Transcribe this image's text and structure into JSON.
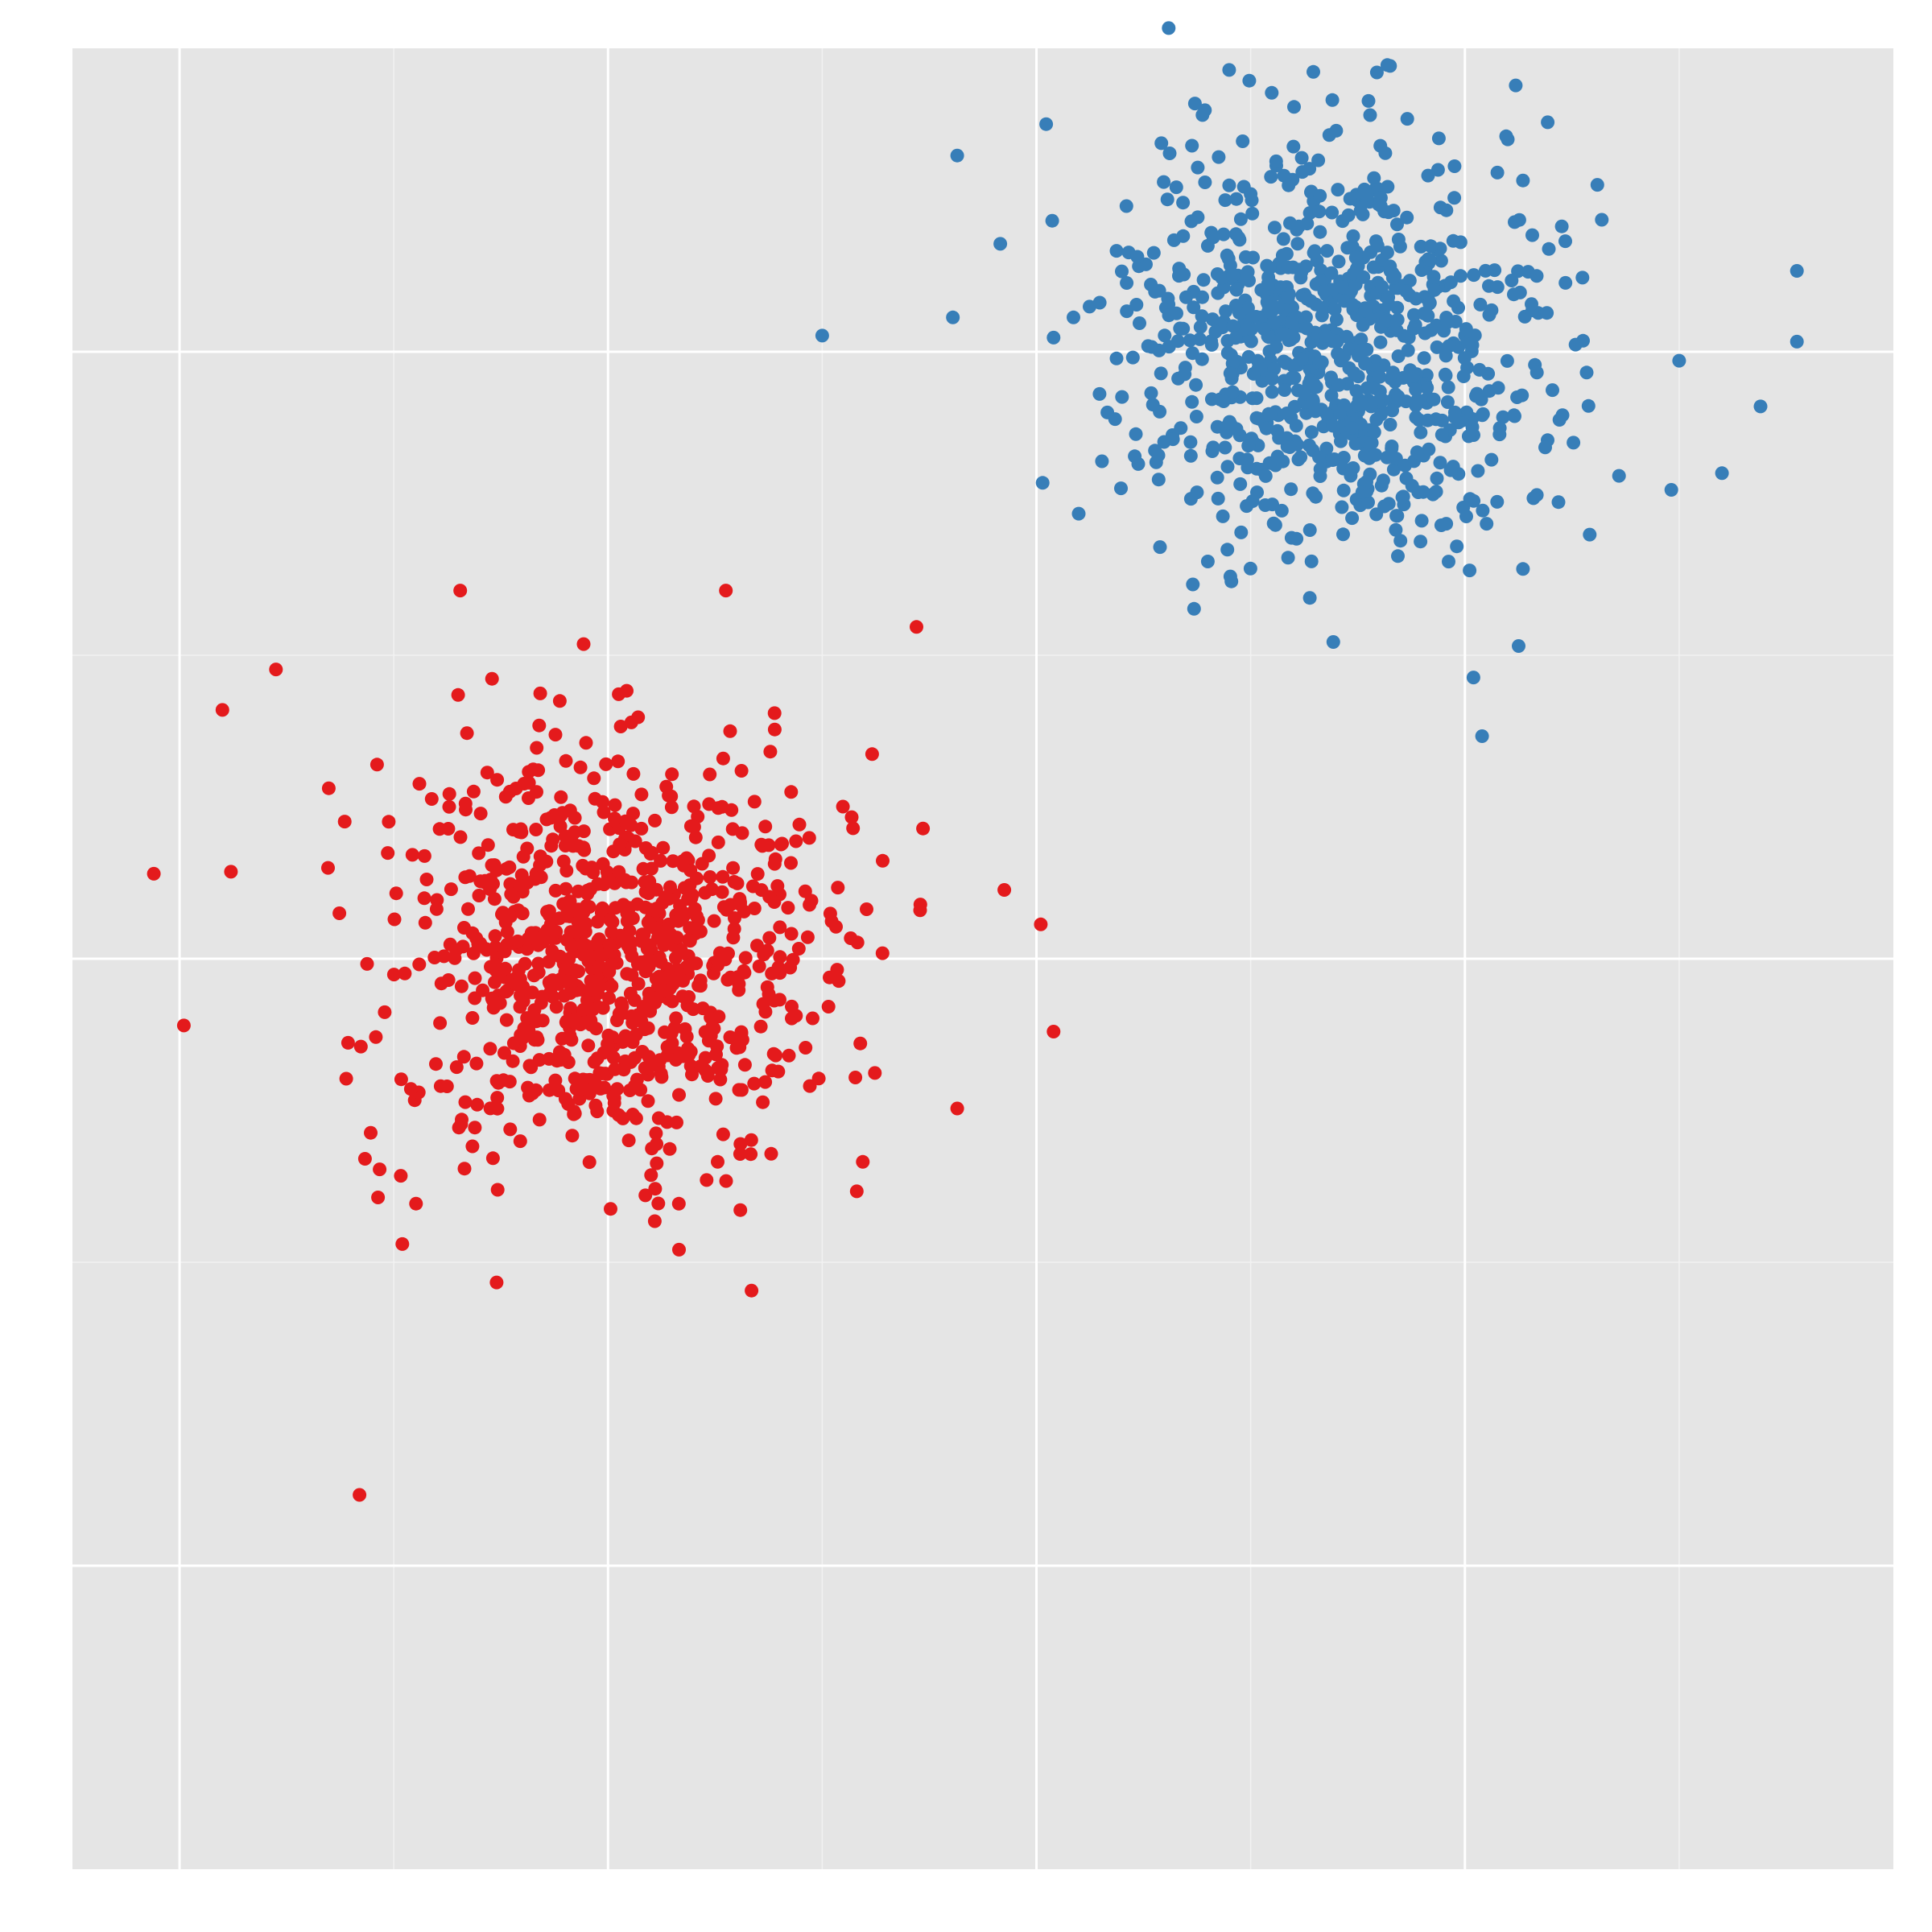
{
  "chart_data": {
    "type": "scatter",
    "title": "",
    "xlabel": "",
    "ylabel": "",
    "xlim": [
      -2.5,
      6
    ],
    "ylim": [
      -4.5,
      4.5
    ],
    "grid": true,
    "x_major_ticks": [
      -2,
      0,
      2,
      4
    ],
    "x_minor_ticks": [
      -1,
      1,
      3,
      5
    ],
    "y_major_ticks": [
      -3,
      0,
      3
    ],
    "y_minor_ticks": [
      -1.5,
      1.5
    ],
    "colors": {
      "panel": "#e5e5e5",
      "grid_major": "#ffffff",
      "grid_minor": "#f2f2f2",
      "red": "#e41a1c",
      "blue": "#377eb8"
    },
    "series": [
      {
        "color": "#e41a1c",
        "center": [
          0,
          0
        ],
        "spread": 0.5,
        "count": 900,
        "outliers": [
          [
            -2.12,
            0.42
          ],
          [
            -1.16,
            -2.65
          ],
          [
            -0.69,
            1.82
          ],
          [
            2.02,
            0.17
          ],
          [
            2.08,
            -0.36
          ],
          [
            1.44,
            1.64
          ],
          [
            0.67,
            -1.64
          ],
          [
            -0.52,
            -1.6
          ],
          [
            -1.8,
            1.23
          ],
          [
            -1.76,
            0.43
          ],
          [
            1.85,
            0.34
          ],
          [
            1.63,
            -0.74
          ],
          [
            0.55,
            1.82
          ],
          [
            -1.98,
            -0.33
          ],
          [
            -0.96,
            -1.41
          ],
          [
            -1.55,
            1.43
          ]
        ]
      },
      {
        "color": "#377eb8",
        "center": [
          3.4,
          3.0
        ],
        "spread": 0.5,
        "count": 900,
        "outliers": [
          [
            1.63,
            3.97
          ],
          [
            4.2,
            4.05
          ],
          [
            5.55,
            3.4
          ],
          [
            5.55,
            3.05
          ],
          [
            1.0,
            3.08
          ],
          [
            2.08,
            3.07
          ],
          [
            5.38,
            2.73
          ],
          [
            4.08,
            1.1
          ],
          [
            2.73,
            1.85
          ],
          [
            4.04,
            1.39
          ],
          [
            2.42,
            3.72
          ],
          [
            1.61,
            3.17
          ],
          [
            5.2,
            2.4
          ],
          [
            3.0,
            3.78
          ]
        ]
      }
    ]
  }
}
